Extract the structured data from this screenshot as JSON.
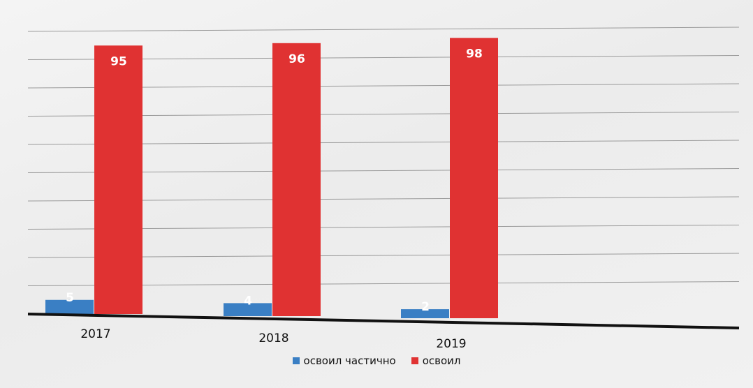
{
  "chart_data": {
    "type": "bar",
    "title": "",
    "xlabel": "",
    "ylabel": "",
    "categories": [
      "2017",
      "2018",
      "2019"
    ],
    "series": [
      {
        "name": "освоил частично",
        "values": [
          5,
          4,
          2
        ],
        "color": "#3a7fc4"
      },
      {
        "name": "освоил",
        "values": [
          95,
          96,
          98
        ],
        "color": "#e03232"
      }
    ],
    "ylim": [
      0,
      100
    ],
    "grid": true,
    "legend_position": "bottom"
  }
}
